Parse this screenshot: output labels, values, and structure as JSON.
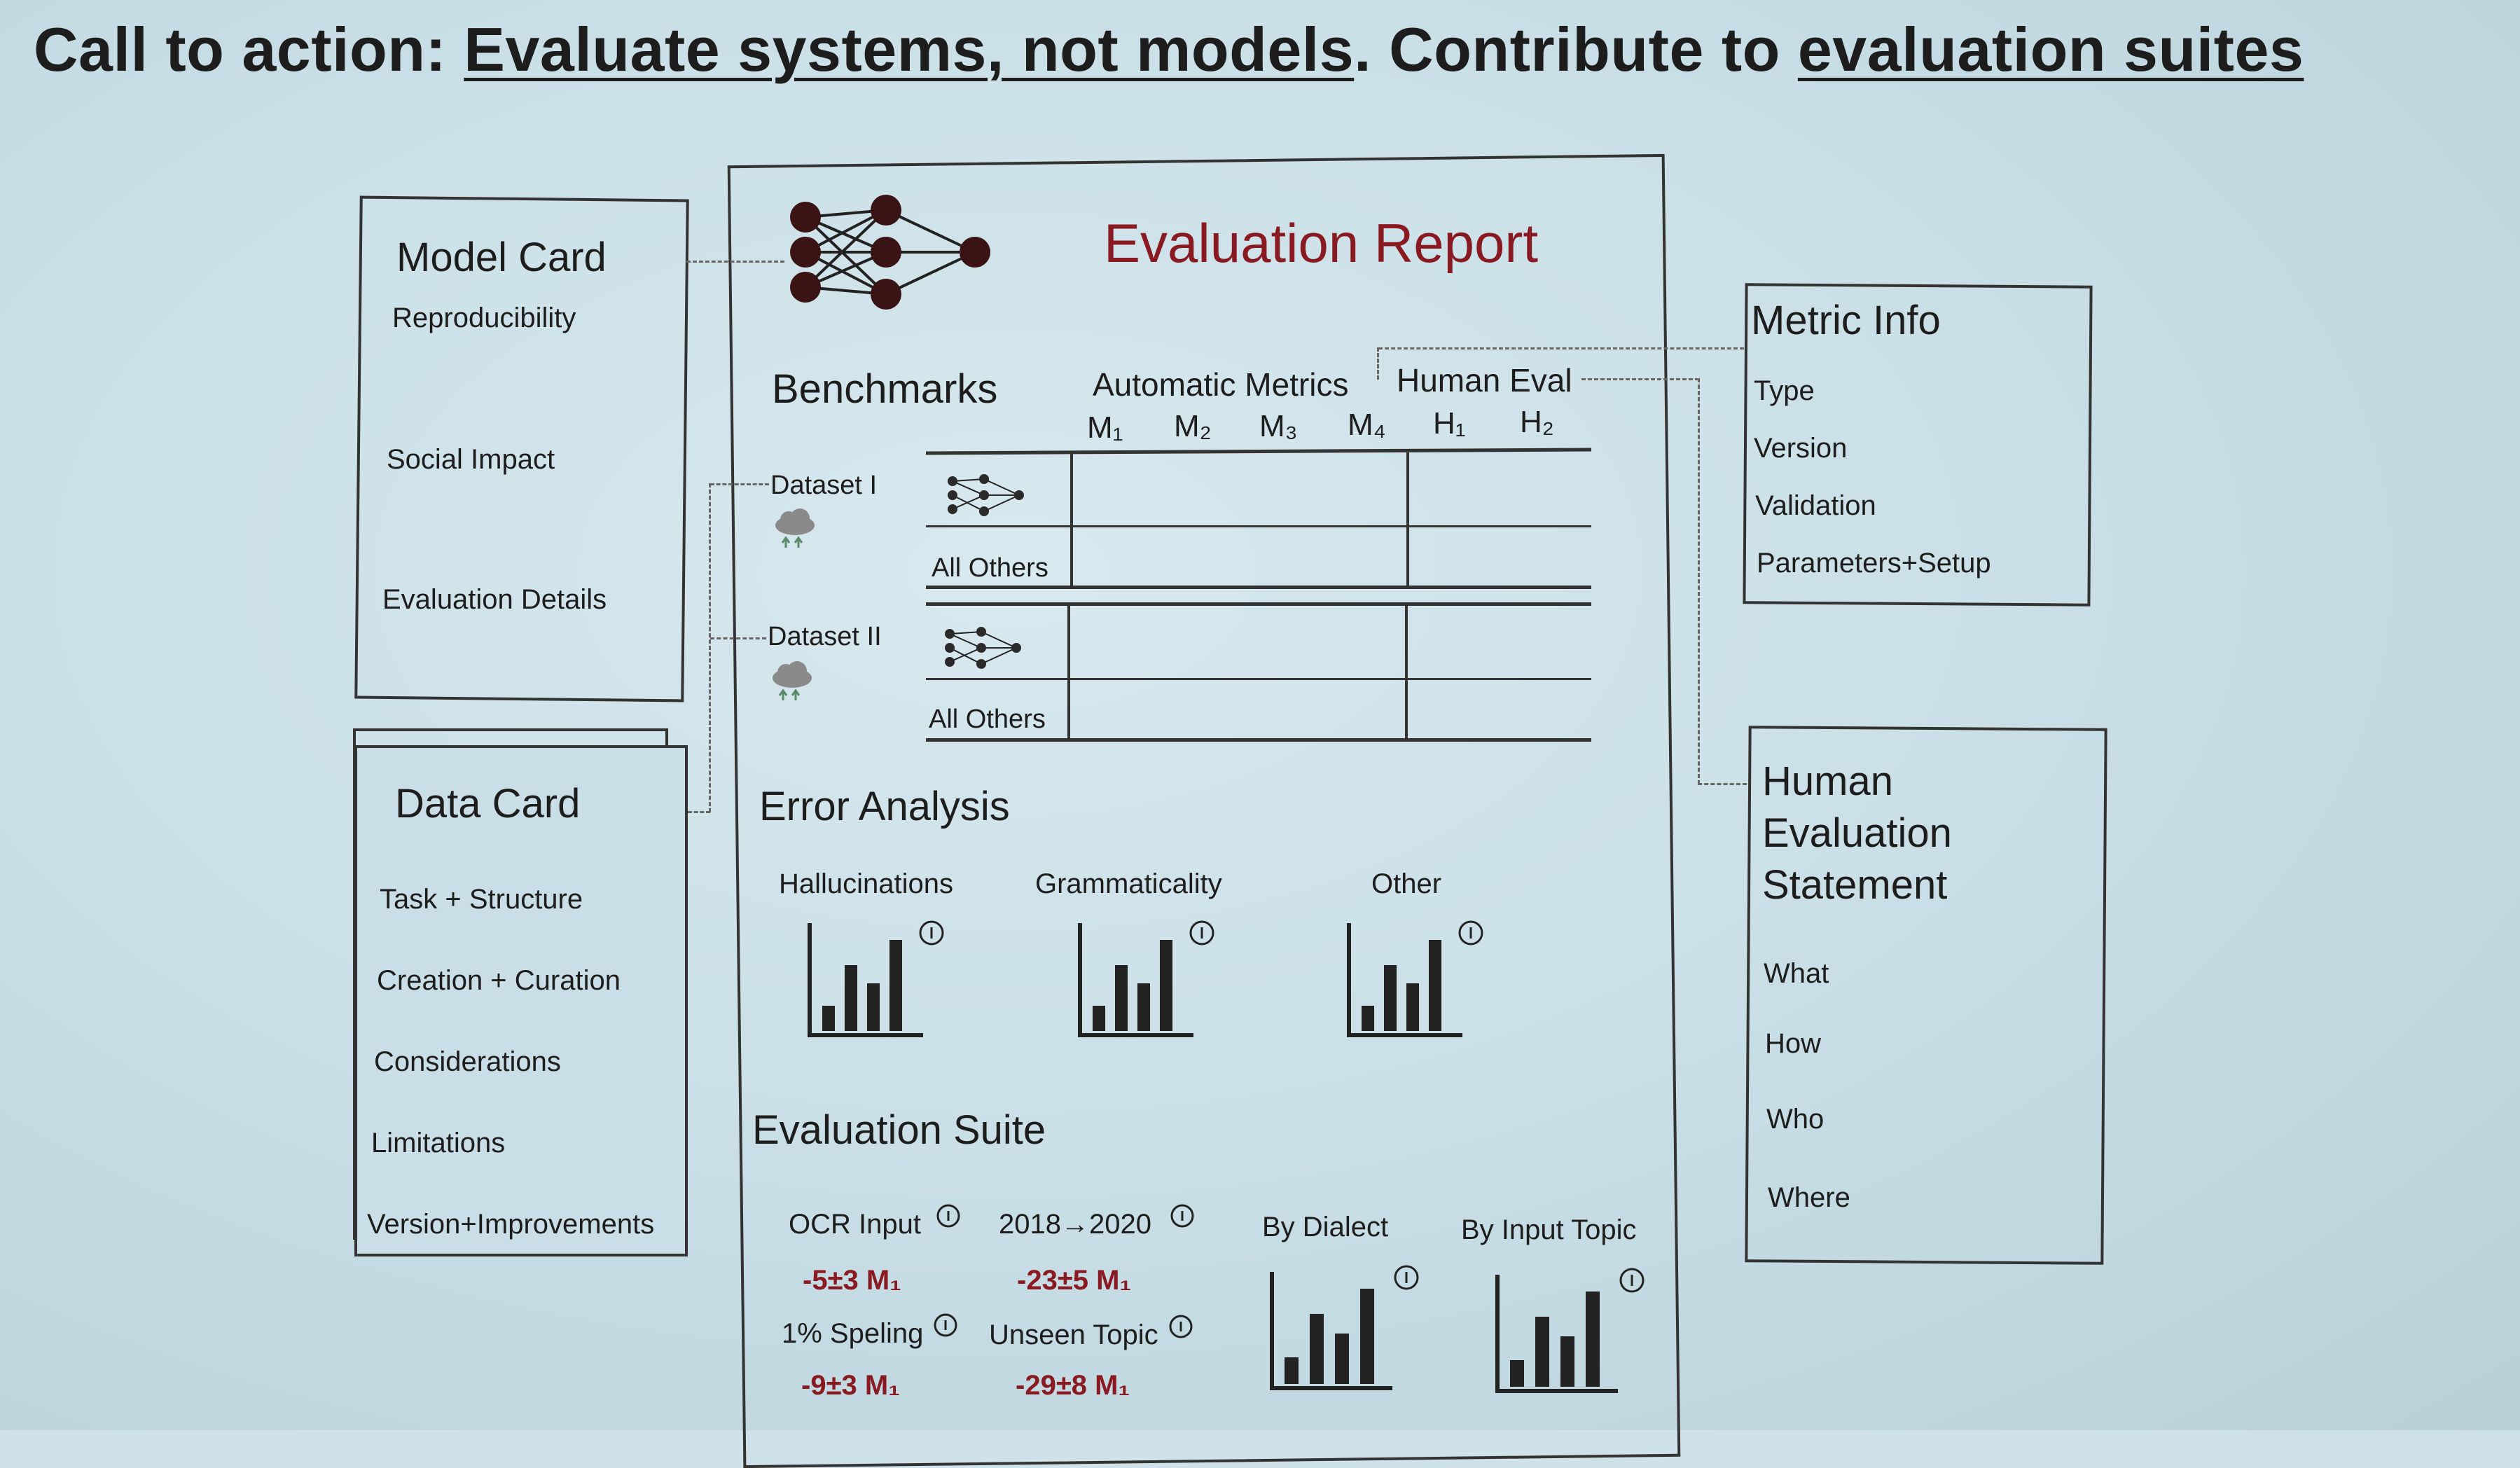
{
  "title": {
    "prefix": "Call to action: ",
    "link1": "Evaluate systems, not models",
    "middle": ". Contribute to ",
    "link2": "evaluation suites"
  },
  "model_card": {
    "heading": "Model Card",
    "items": [
      "Reproducibility",
      "Social Impact",
      "Evaluation Details"
    ]
  },
  "data_card": {
    "heading": "Data Card",
    "items": [
      "Task + Structure",
      "Creation + Curation",
      "Considerations",
      "Limitations",
      "Version+Improvements"
    ]
  },
  "report": {
    "heading": "Evaluation Report",
    "benchmarks": "Benchmarks",
    "automatic_metrics": "Automatic Metrics",
    "human_eval": "Human Eval",
    "metric_cols": [
      "M₁",
      "M₂",
      "M₃",
      "M₄",
      "H₁",
      "H₂"
    ],
    "dataset1": "Dataset I",
    "dataset2": "Dataset II",
    "all_others_1": "All Others",
    "all_others_2": "All Others",
    "error_analysis": "Error Analysis",
    "error_items": [
      "Hallucinations",
      "Grammaticality",
      "Other"
    ],
    "evaluation_suite": "Evaluation Suite",
    "suite": {
      "ocr_input": "OCR Input",
      "ocr_value": "-5±3 M₁",
      "years": "2018→2020",
      "years_value": "-23±5 M₁",
      "speling": "1% Speling",
      "speling_value": "-9±3 M₁",
      "unseen": "Unseen Topic",
      "unseen_value": "-29±8 M₁",
      "by_dialect": "By Dialect",
      "by_topic": "By Input Topic"
    }
  },
  "metric_info": {
    "heading": "Metric Info",
    "items": [
      "Type",
      "Version",
      "Validation",
      "Parameters+Setup"
    ]
  },
  "human_eval_statement": {
    "heading_lines": [
      "Human",
      "Evaluation",
      "Statement"
    ],
    "items": [
      "What",
      "How",
      "Who",
      "Where"
    ]
  },
  "colors": {
    "accent": "#8a1a22",
    "background": "#cfe2e9",
    "ink": "#1d1d1d"
  }
}
